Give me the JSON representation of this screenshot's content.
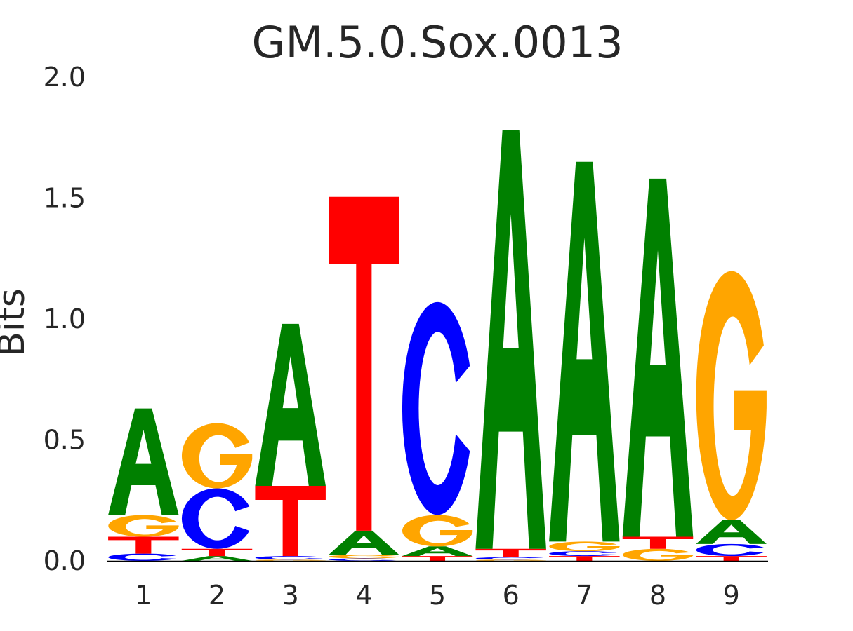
{
  "chart_data": {
    "type": "sequence-logo",
    "title": "GM.5.0.Sox.0013",
    "ylabel": "Bits",
    "xlabel": "",
    "ylim": [
      0,
      2.0
    ],
    "yticks": [
      "0.0",
      "0.5",
      "1.0",
      "1.5",
      "2.0"
    ],
    "grid": false,
    "legend": "none",
    "base_colors": {
      "A": "#008000",
      "C": "#0000ff",
      "G": "#ffa500",
      "T": "#ff0000"
    },
    "positions": [
      {
        "label": "1",
        "stack": [
          {
            "base": "C",
            "bits": 0.03
          },
          {
            "base": "T",
            "bits": 0.07
          },
          {
            "base": "G",
            "bits": 0.09
          },
          {
            "base": "A",
            "bits": 0.44
          }
        ]
      },
      {
        "label": "2",
        "stack": [
          {
            "base": "A",
            "bits": 0.02
          },
          {
            "base": "T",
            "bits": 0.03
          },
          {
            "base": "C",
            "bits": 0.25
          },
          {
            "base": "G",
            "bits": 0.27
          }
        ]
      },
      {
        "label": "3",
        "stack": [
          {
            "base": "G",
            "bits": 0.005
          },
          {
            "base": "C",
            "bits": 0.015
          },
          {
            "base": "T",
            "bits": 0.29
          },
          {
            "base": "A",
            "bits": 0.67
          }
        ]
      },
      {
        "label": "4",
        "stack": [
          {
            "base": "C",
            "bits": 0.01
          },
          {
            "base": "G",
            "bits": 0.015
          },
          {
            "base": "A",
            "bits": 0.1
          },
          {
            "base": "T",
            "bits": 1.38
          }
        ]
      },
      {
        "label": "5",
        "stack": [
          {
            "base": "T",
            "bits": 0.02
          },
          {
            "base": "A",
            "bits": 0.04
          },
          {
            "base": "G",
            "bits": 0.13
          },
          {
            "base": "C",
            "bits": 0.88
          }
        ]
      },
      {
        "label": "6",
        "stack": [
          {
            "base": "G",
            "bits": 0.005
          },
          {
            "base": "C",
            "bits": 0.01
          },
          {
            "base": "T",
            "bits": 0.035
          },
          {
            "base": "A",
            "bits": 1.73
          }
        ]
      },
      {
        "label": "7",
        "stack": [
          {
            "base": "T",
            "bits": 0.02
          },
          {
            "base": "C",
            "bits": 0.02
          },
          {
            "base": "G",
            "bits": 0.04
          },
          {
            "base": "A",
            "bits": 1.57
          }
        ]
      },
      {
        "label": "8",
        "stack": [
          {
            "base": "G",
            "bits": 0.05
          },
          {
            "base": "T",
            "bits": 0.05
          },
          {
            "base": "A",
            "bits": 1.48
          }
        ]
      },
      {
        "label": "9",
        "stack": [
          {
            "base": "T",
            "bits": 0.02
          },
          {
            "base": "C",
            "bits": 0.05
          },
          {
            "base": "A",
            "bits": 0.1
          },
          {
            "base": "G",
            "bits": 1.03
          }
        ]
      }
    ]
  }
}
